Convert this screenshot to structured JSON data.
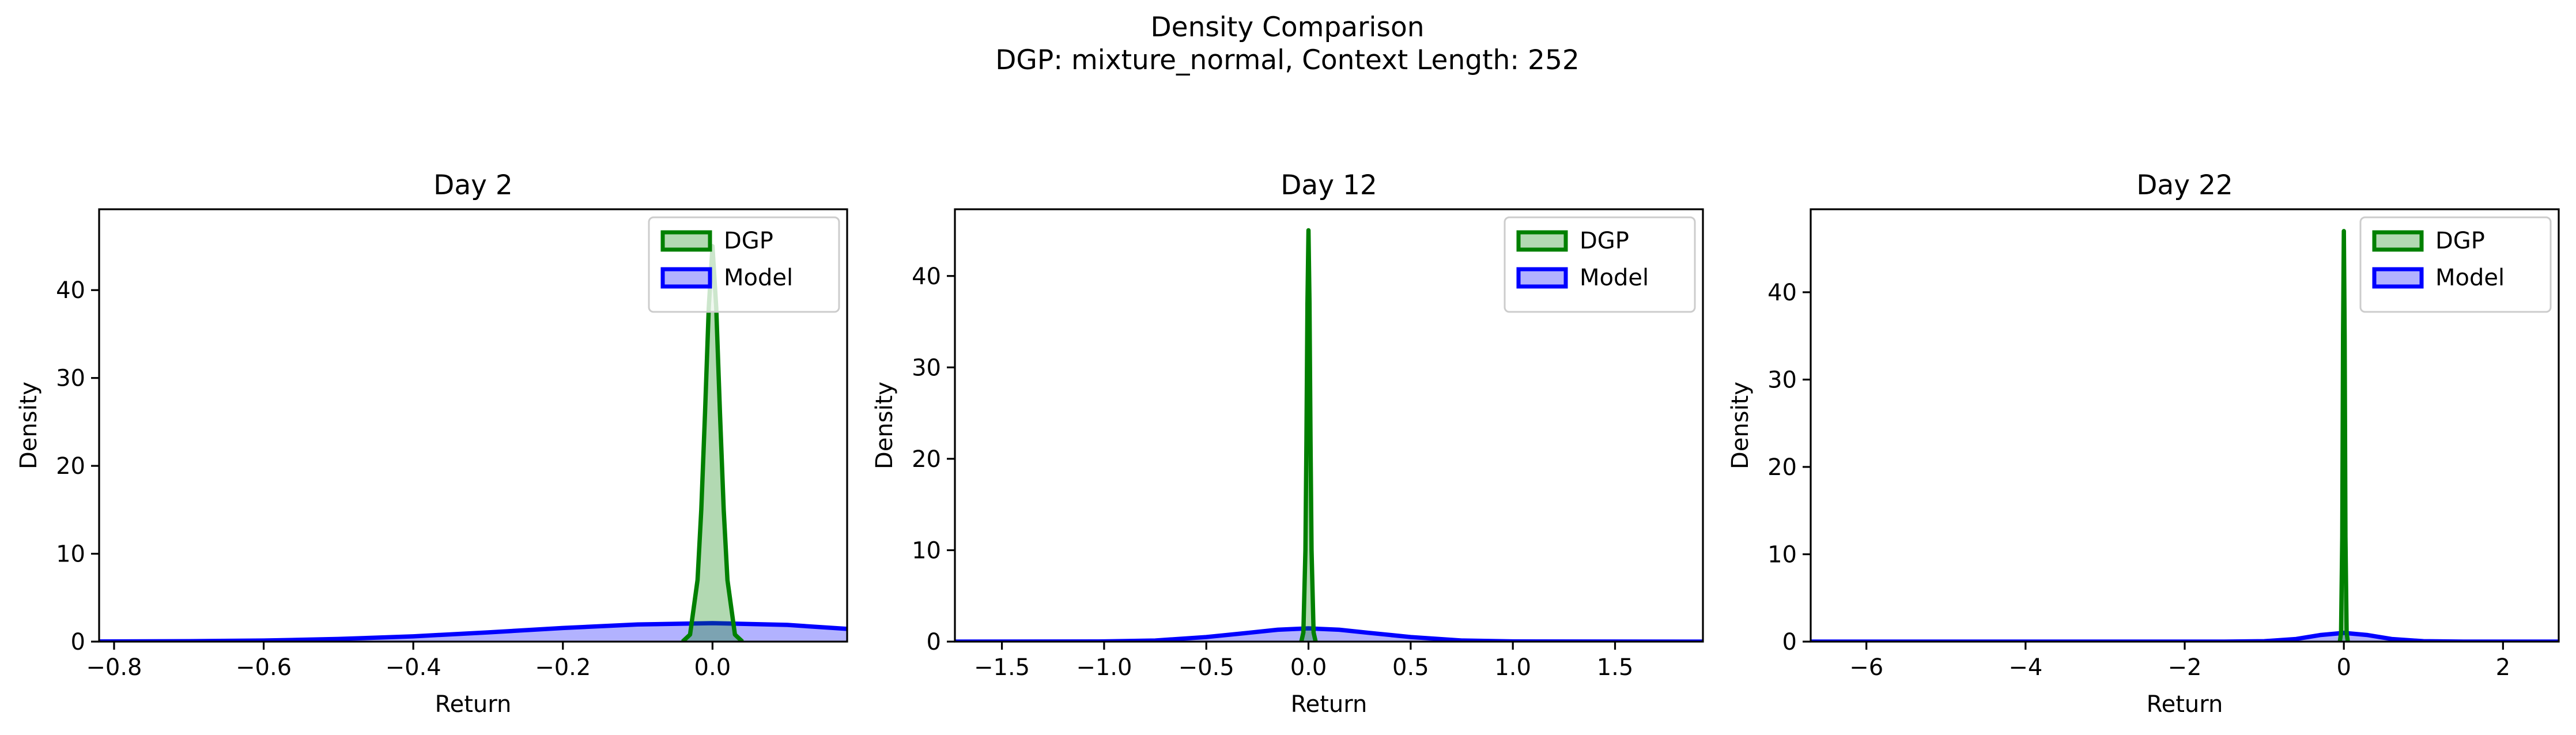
{
  "figure": {
    "title_line1": "Density Comparison",
    "title_line2": "DGP: mixture_normal, Context Length: 252"
  },
  "colors": {
    "dgp_line": "#008000",
    "dgp_fill": "#008000",
    "model_line": "#0000ff",
    "model_fill": "#0000ff",
    "axes": "#000000",
    "background": "#ffffff"
  },
  "chart_data": [
    {
      "type": "area",
      "title": "Day 2",
      "xlabel": "Return",
      "ylabel": "Density",
      "xlim": [
        -0.82,
        0.18
      ],
      "ylim": [
        0,
        49.2
      ],
      "xticks": [
        -0.8,
        -0.6,
        -0.4,
        -0.2,
        0.0
      ],
      "xtick_labels": [
        "−0.8",
        "−0.6",
        "−0.4",
        "−0.2",
        "0.0"
      ],
      "yticks": [
        0,
        10,
        20,
        30,
        40
      ],
      "ytick_labels": [
        "0",
        "10",
        "20",
        "30",
        "40"
      ],
      "legend_position": "top-right",
      "grid": false,
      "series": [
        {
          "name": "DGP",
          "x": [
            -0.04,
            -0.03,
            -0.02,
            -0.015,
            -0.01,
            -0.005,
            0.0,
            0.005,
            0.01,
            0.015,
            0.02,
            0.03,
            0.04
          ],
          "y": [
            0.0,
            0.8,
            7,
            15,
            26,
            38,
            45,
            38,
            26,
            15,
            7,
            0.8,
            0.0
          ]
        },
        {
          "name": "Model",
          "x": [
            -0.82,
            -0.7,
            -0.6,
            -0.5,
            -0.4,
            -0.3,
            -0.2,
            -0.1,
            0.0,
            0.1,
            0.18
          ],
          "y": [
            0.02,
            0.05,
            0.12,
            0.3,
            0.6,
            1.05,
            1.55,
            1.95,
            2.1,
            1.9,
            1.45
          ]
        }
      ]
    },
    {
      "type": "area",
      "title": "Day 12",
      "xlabel": "Return",
      "ylabel": "Density",
      "xlim": [
        -1.73,
        1.93
      ],
      "ylim": [
        0,
        47.3
      ],
      "xticks": [
        -1.5,
        -1.0,
        -0.5,
        0.0,
        0.5,
        1.0,
        1.5
      ],
      "xtick_labels": [
        "−1.5",
        "−1.0",
        "−0.5",
        "0.0",
        "0.5",
        "1.0",
        "1.5"
      ],
      "yticks": [
        0,
        10,
        20,
        30,
        40
      ],
      "ytick_labels": [
        "0",
        "10",
        "20",
        "30",
        "40"
      ],
      "legend_position": "top-right",
      "grid": false,
      "series": [
        {
          "name": "DGP",
          "x": [
            -0.035,
            -0.025,
            -0.015,
            -0.01,
            -0.005,
            0.0,
            0.005,
            0.01,
            0.015,
            0.025,
            0.035
          ],
          "y": [
            0.0,
            1.0,
            10,
            22,
            37,
            45,
            37,
            22,
            10,
            1.0,
            0.0
          ]
        },
        {
          "name": "Model",
          "x": [
            -1.73,
            -1.0,
            -0.75,
            -0.5,
            -0.3,
            -0.15,
            0.0,
            0.15,
            0.3,
            0.5,
            0.75,
            1.0,
            1.93
          ],
          "y": [
            0.0,
            0.02,
            0.12,
            0.5,
            0.95,
            1.3,
            1.45,
            1.3,
            0.95,
            0.5,
            0.12,
            0.02,
            0.0
          ]
        }
      ]
    },
    {
      "type": "area",
      "title": "Day 22",
      "xlabel": "Return",
      "ylabel": "Density",
      "xlim": [
        -6.7,
        2.7
      ],
      "ylim": [
        0,
        49.5
      ],
      "xticks": [
        -6,
        -4,
        -2,
        0,
        2
      ],
      "xtick_labels": [
        "−6",
        "−4",
        "−2",
        "0",
        "2"
      ],
      "yticks": [
        0,
        10,
        20,
        30,
        40
      ],
      "ytick_labels": [
        "0",
        "10",
        "20",
        "30",
        "40"
      ],
      "legend_position": "top-right",
      "grid": false,
      "series": [
        {
          "name": "DGP",
          "x": [
            -0.05,
            -0.035,
            -0.02,
            -0.01,
            0.0,
            0.01,
            0.02,
            0.035,
            0.05
          ],
          "y": [
            0.0,
            1.0,
            12,
            35,
            47,
            35,
            12,
            1.0,
            0.0
          ]
        },
        {
          "name": "Model",
          "x": [
            -6.7,
            -1.5,
            -1.0,
            -0.6,
            -0.3,
            0.0,
            0.3,
            0.6,
            1.0,
            1.5,
            2.7
          ],
          "y": [
            0.0,
            0.0,
            0.05,
            0.3,
            0.75,
            1.0,
            0.75,
            0.3,
            0.05,
            0.0,
            0.0
          ]
        }
      ]
    }
  ]
}
